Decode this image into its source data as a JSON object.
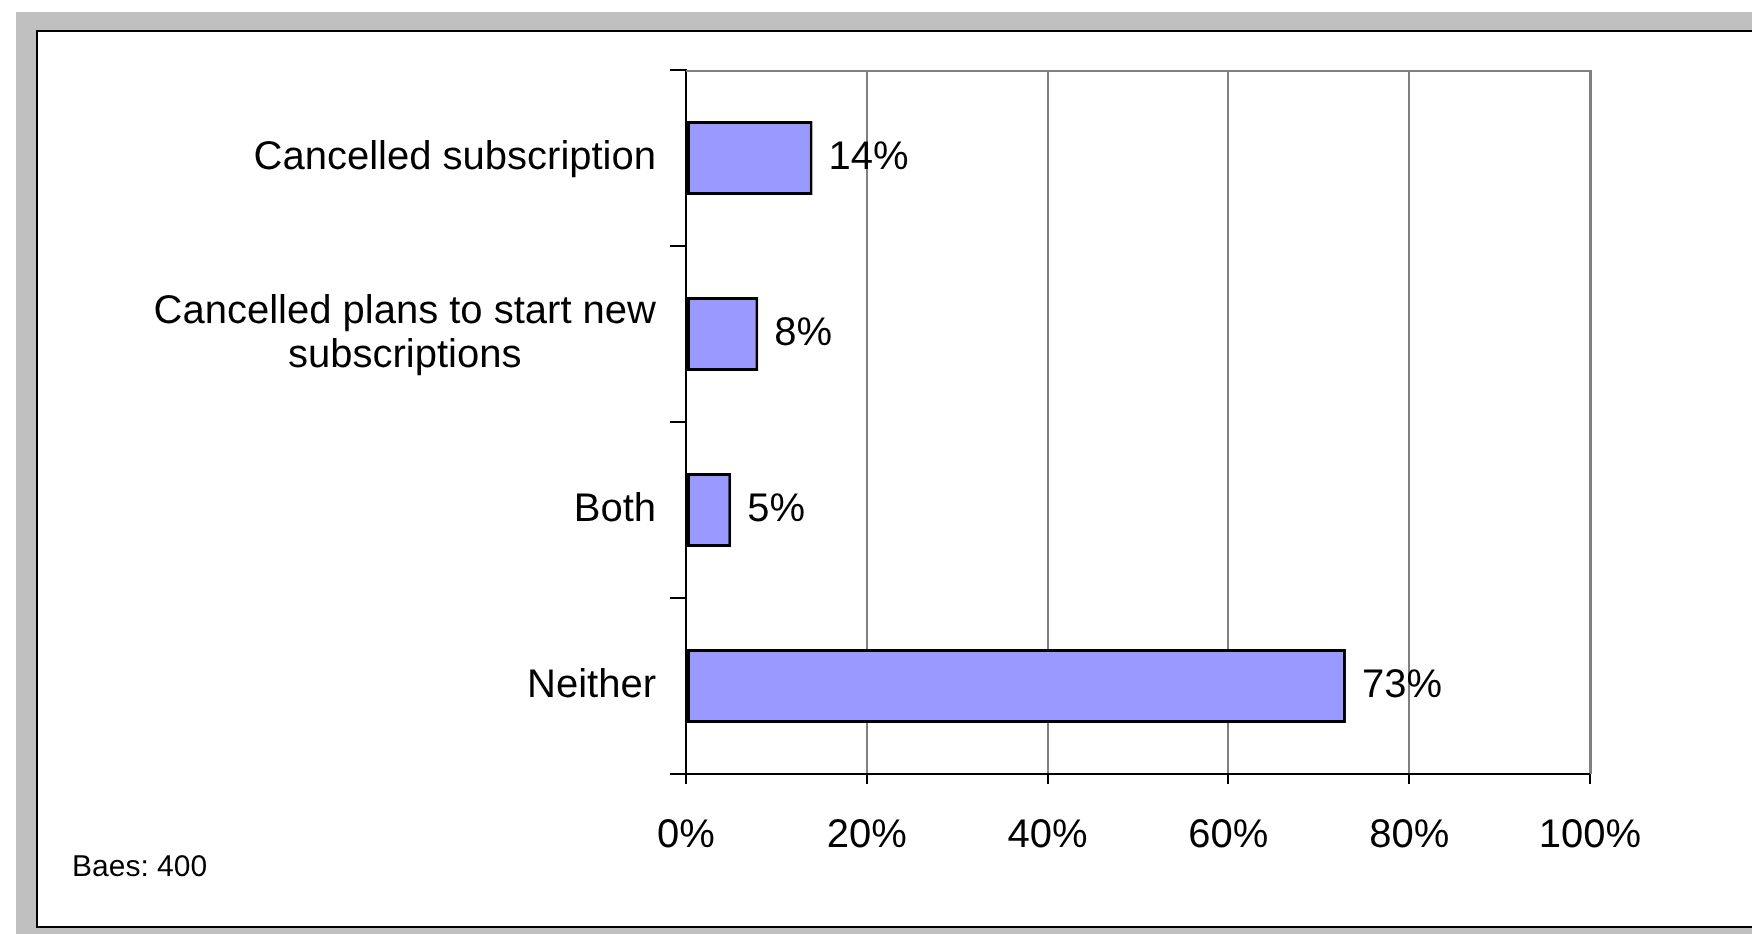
{
  "chart_data": {
    "type": "bar",
    "orientation": "horizontal",
    "categories": [
      "Cancelled subscription",
      "Cancelled plans to start new subscriptions",
      "Both",
      "Neither"
    ],
    "values": [
      14,
      8,
      5,
      73
    ],
    "color": "#9999ff",
    "value_labels": [
      "14%",
      "8%",
      "5%",
      "73%"
    ],
    "xlim": [
      0,
      100
    ],
    "xticks": [
      {
        "value": 0,
        "label": "0%"
      },
      {
        "value": 20,
        "label": "20%"
      },
      {
        "value": 40,
        "label": "40%"
      },
      {
        "value": 60,
        "label": "60%"
      },
      {
        "value": 80,
        "label": "80%"
      },
      {
        "value": 100,
        "label": "100%"
      }
    ],
    "grid": "x",
    "annotations": [
      "Baes: 400"
    ]
  }
}
